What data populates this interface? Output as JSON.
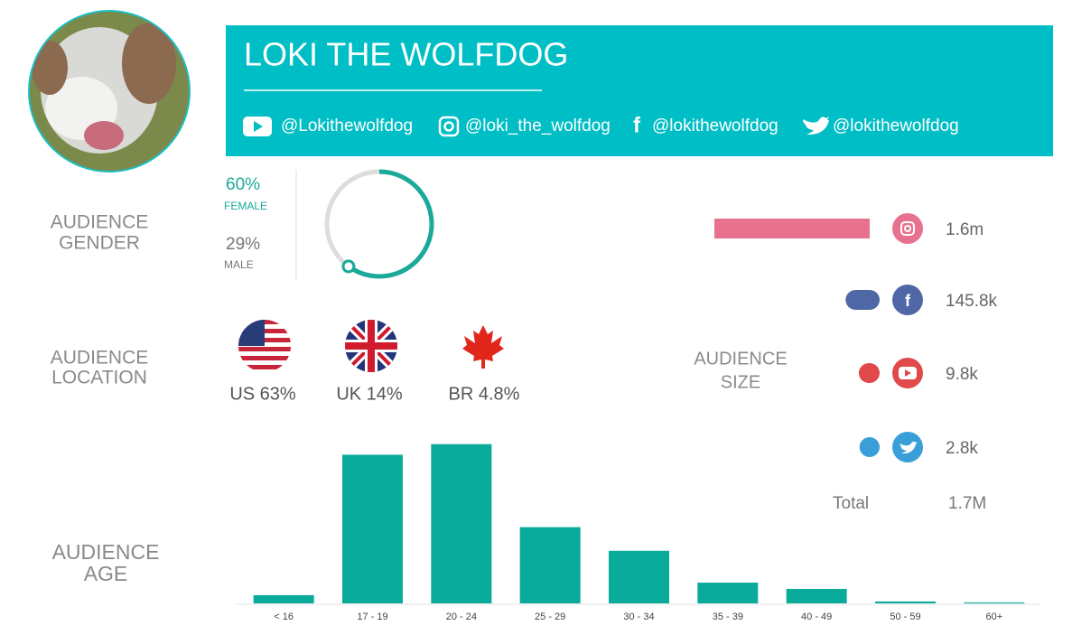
{
  "header": {
    "title": "LOKI THE WOLFDOG",
    "handles": [
      "@Lokithewolfdog",
      "@loki_the_wolfdog",
      "@lokithewolfdog",
      "@lokithewolfdog"
    ]
  },
  "gender": {
    "title": [
      "AUDIENCE",
      "GENDER"
    ],
    "values": [
      60,
      29
    ],
    "value_labels": [
      "60%",
      "29%"
    ],
    "labels": [
      "FEMALE",
      "MALE"
    ],
    "color": "#1aa99a"
  },
  "location": {
    "title": [
      "AUDIENCE",
      "LOCATION"
    ],
    "labels": [
      "US 63%",
      "UK 14%",
      "BR 4.8%"
    ]
  },
  "size": {
    "title": [
      "AUDIENCE",
      "SIZE"
    ],
    "values": [
      1600000,
      145800,
      9800,
      2800
    ],
    "value_labels": [
      "1.6m",
      "145.8k",
      "9.8k",
      "2.8k"
    ],
    "colors": [
      "#e8718f",
      "#4f67a6",
      "#e04a4a",
      "#3a9fd8"
    ],
    "total_label": "Total",
    "total": "1.7M"
  },
  "age": {
    "title": [
      "AUDIENCE",
      "AGE"
    ],
    "chart_data": {
      "type": "bar",
      "categories": [
        "< 16",
        "17 - 19",
        "20 - 24",
        "25 - 29",
        "30 - 34",
        "35 - 39",
        "40 - 49",
        "50 - 59",
        "60+"
      ],
      "values": [
        1.7,
        30.8,
        33.0,
        15.8,
        10.9,
        4.3,
        3.0,
        0.4,
        0.2
      ],
      "color": "#0aab9b",
      "ylim": [
        0,
        35
      ]
    }
  }
}
